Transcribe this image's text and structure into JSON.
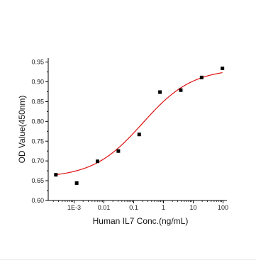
{
  "chart_data": {
    "type": "scatter",
    "xlabel": "Human IL7 Conc.(ng/mL)",
    "ylabel": "OD Value(450nm)",
    "x_scale": "log",
    "xlim": [
      0.000135,
      135
    ],
    "ylim": [
      0.6,
      0.96
    ],
    "x_ticks": [
      {
        "value": 0.001,
        "label": "1E-3"
      },
      {
        "value": 0.01,
        "label": "0.01"
      },
      {
        "value": 0.1,
        "label": "0.1"
      },
      {
        "value": 1,
        "label": "1"
      },
      {
        "value": 10,
        "label": "10"
      },
      {
        "value": 100,
        "label": "100"
      }
    ],
    "y_ticks": [
      {
        "value": 0.6,
        "label": "0.60"
      },
      {
        "value": 0.65,
        "label": "0.65"
      },
      {
        "value": 0.7,
        "label": "0.70"
      },
      {
        "value": 0.75,
        "label": "0.75"
      },
      {
        "value": 0.8,
        "label": "0.80"
      },
      {
        "value": 0.85,
        "label": "0.85"
      },
      {
        "value": 0.9,
        "label": "0.90"
      },
      {
        "value": 0.95,
        "label": "0.95"
      }
    ],
    "points": [
      {
        "x": 0.000244,
        "y": 0.665
      },
      {
        "x": 0.00122,
        "y": 0.644
      },
      {
        "x": 0.0061,
        "y": 0.699
      },
      {
        "x": 0.0305,
        "y": 0.725
      },
      {
        "x": 0.153,
        "y": 0.767
      },
      {
        "x": 0.763,
        "y": 0.874
      },
      {
        "x": 3.81,
        "y": 0.879
      },
      {
        "x": 19.1,
        "y": 0.911
      },
      {
        "x": 95.4,
        "y": 0.934
      }
    ],
    "fit": {
      "type": "4PL",
      "bottom": 0.657,
      "top": 0.934,
      "ec50": 0.2,
      "hill": 0.52
    },
    "marker_color": "#000000",
    "fit_color": "#e01010",
    "grid": false
  }
}
